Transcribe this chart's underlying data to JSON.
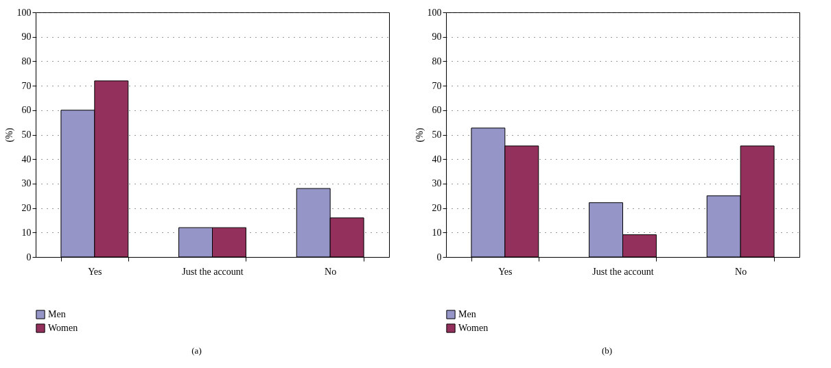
{
  "chart_data": [
    {
      "type": "bar",
      "categories": [
        "Yes",
        "Just the account",
        "No"
      ],
      "ylabel": "(%)",
      "ylim": [
        0,
        100
      ],
      "yticks": [
        0,
        10,
        20,
        30,
        40,
        50,
        60,
        70,
        80,
        90,
        100
      ],
      "grid": "y",
      "legend": "bottom",
      "annotations": [
        "(a)"
      ],
      "series": [
        {
          "name": "Men",
          "color": "#9595c8",
          "values": [
            60,
            12,
            28
          ]
        },
        {
          "name": "Women",
          "color": "#93305c",
          "values": [
            72,
            12,
            16
          ]
        }
      ]
    },
    {
      "type": "bar",
      "categories": [
        "Yes",
        "Just the account",
        "No"
      ],
      "ylabel": "(%)",
      "ylim": [
        0,
        100
      ],
      "yticks": [
        0,
        10,
        20,
        30,
        40,
        50,
        60,
        70,
        80,
        90,
        100
      ],
      "grid": "y",
      "legend": "bottom",
      "annotations": [
        "(b)"
      ],
      "series": [
        {
          "name": "Men",
          "color": "#9595c8",
          "values": [
            52.7,
            22.2,
            25
          ]
        },
        {
          "name": "Women",
          "color": "#93305c",
          "values": [
            45.4,
            9.1,
            45.4
          ]
        }
      ]
    }
  ]
}
